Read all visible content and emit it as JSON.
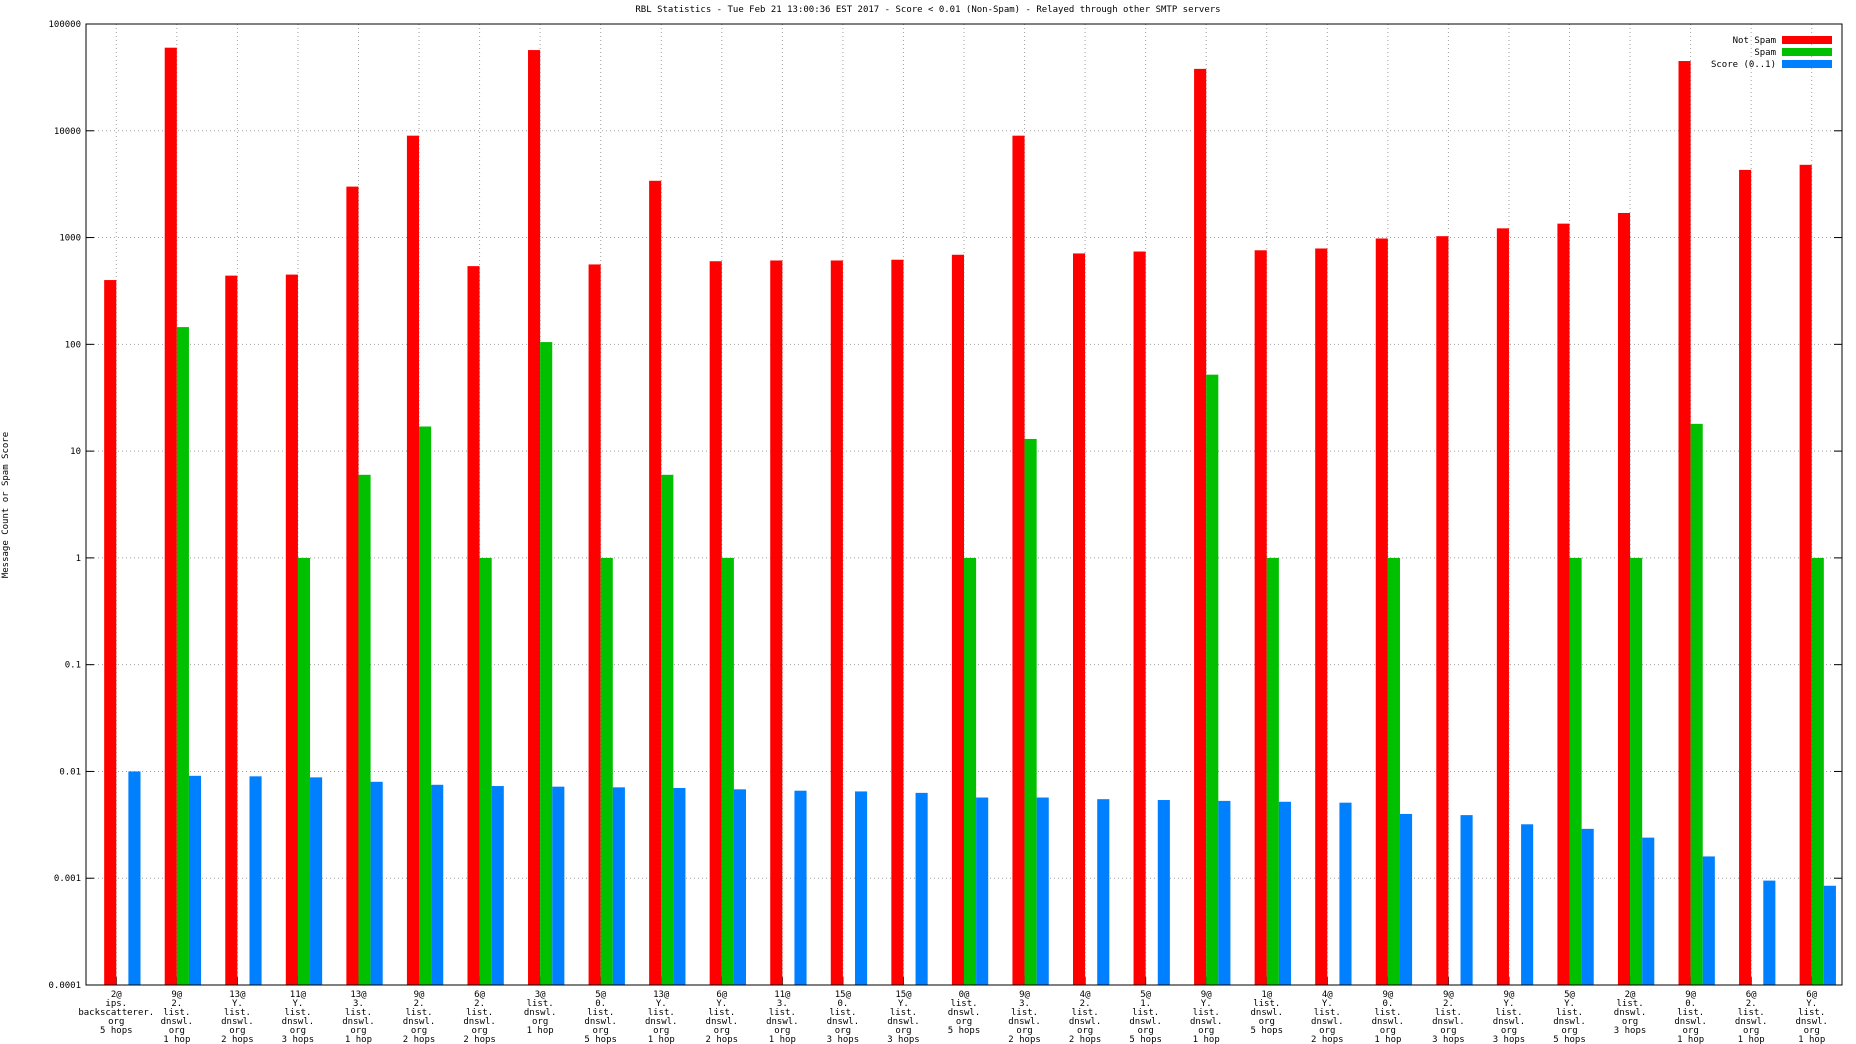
{
  "chart_data": {
    "type": "bar",
    "title": "RBL Statistics - Tue Feb 21 13:00:36 EST 2017 - Score < 0.01 (Non-Spam) - Relayed through other SMTP servers",
    "y_label": "Message Count or Spam Score",
    "log_scale": true,
    "grid": true,
    "legend": "top-right",
    "ylim": [
      0.0001,
      100000
    ],
    "yticks": [
      0.0001,
      0.001,
      0.01,
      0.1,
      1,
      10,
      100,
      1000,
      10000,
      100000
    ],
    "categories": [
      [
        "2@",
        "ips.",
        "backscatterer.",
        "org",
        "5 hops"
      ],
      [
        "9@",
        "2.",
        "list.",
        "dnswl.",
        "org",
        "1 hop"
      ],
      [
        "13@",
        "Y.",
        "list.",
        "dnswl.",
        "org",
        "2 hops"
      ],
      [
        "11@",
        "Y.",
        "list.",
        "dnswl.",
        "org",
        "3 hops"
      ],
      [
        "13@",
        "3.",
        "list.",
        "dnswl.",
        "org",
        "1 hop"
      ],
      [
        "9@",
        "2.",
        "list.",
        "dnswl.",
        "org",
        "2 hops"
      ],
      [
        "6@",
        "2.",
        "list.",
        "dnswl.",
        "org",
        "2 hops"
      ],
      [
        "3@",
        "list.",
        "dnswl.",
        "org",
        "1 hop"
      ],
      [
        "5@",
        "0.",
        "list.",
        "dnswl.",
        "org",
        "5 hops"
      ],
      [
        "13@",
        "Y.",
        "list.",
        "dnswl.",
        "org",
        "1 hop"
      ],
      [
        "6@",
        "Y.",
        "list.",
        "dnswl.",
        "org",
        "2 hops"
      ],
      [
        "11@",
        "3.",
        "list.",
        "dnswl.",
        "org",
        "1 hop"
      ],
      [
        "15@",
        "0.",
        "list.",
        "dnswl.",
        "org",
        "3 hops"
      ],
      [
        "15@",
        "Y.",
        "list.",
        "dnswl.",
        "org",
        "3 hops"
      ],
      [
        "0@",
        "list.",
        "dnswl.",
        "org",
        "5 hops"
      ],
      [
        "9@",
        "3.",
        "list.",
        "dnswl.",
        "org",
        "2 hops"
      ],
      [
        "4@",
        "2.",
        "list.",
        "dnswl.",
        "org",
        "2 hops"
      ],
      [
        "5@",
        "1.",
        "list.",
        "dnswl.",
        "org",
        "5 hops"
      ],
      [
        "9@",
        "Y.",
        "list.",
        "dnswl.",
        "org",
        "1 hop"
      ],
      [
        "1@",
        "list.",
        "dnswl.",
        "org",
        "5 hops"
      ],
      [
        "4@",
        "Y.",
        "list.",
        "dnswl.",
        "org",
        "2 hops"
      ],
      [
        "9@",
        "0.",
        "list.",
        "dnswl.",
        "org",
        "1 hop"
      ],
      [
        "9@",
        "2.",
        "list.",
        "dnswl.",
        "org",
        "3 hops"
      ],
      [
        "9@",
        "Y.",
        "list.",
        "dnswl.",
        "org",
        "3 hops"
      ],
      [
        "5@",
        "Y.",
        "list.",
        "dnswl.",
        "org",
        "5 hops"
      ],
      [
        "2@",
        "list.",
        "dnswl.",
        "org",
        "3 hops"
      ],
      [
        "9@",
        "0.",
        "list.",
        "dnswl.",
        "org",
        "1 hop"
      ],
      [
        "6@",
        "2.",
        "list.",
        "dnswl.",
        "org",
        "1 hop"
      ],
      [
        "6@",
        "Y.",
        "list.",
        "dnswl.",
        "org",
        "1 hop"
      ]
    ],
    "series": [
      {
        "name": "Not Spam",
        "color": "#ff0000",
        "values": [
          400,
          60000,
          440,
          450,
          3000,
          9000,
          540,
          57000,
          560,
          3400,
          600,
          610,
          610,
          620,
          690,
          9000,
          710,
          740,
          38000,
          760,
          790,
          980,
          1030,
          1220,
          1350,
          1700,
          45000,
          4300,
          4800
        ]
      },
      {
        "name": "Spam",
        "color": "#00c000",
        "values": [
          null,
          145,
          null,
          1,
          6,
          17,
          1,
          105,
          1,
          6,
          1,
          null,
          null,
          null,
          1,
          13,
          null,
          null,
          52,
          1,
          null,
          1,
          null,
          null,
          1,
          1,
          18,
          null,
          1
        ]
      },
      {
        "name": "Score (0..1)",
        "color": "#0080ff",
        "values": [
          0.01,
          0.0091,
          0.009,
          0.0088,
          0.008,
          0.0075,
          0.0073,
          0.0072,
          0.0071,
          0.007,
          0.0068,
          0.0066,
          0.0065,
          0.0063,
          0.0057,
          0.0057,
          0.0055,
          0.0054,
          0.0053,
          0.0052,
          0.0051,
          0.004,
          0.0039,
          0.0032,
          0.0029,
          0.0024,
          0.0016,
          0.00095,
          0.00085
        ]
      }
    ]
  }
}
